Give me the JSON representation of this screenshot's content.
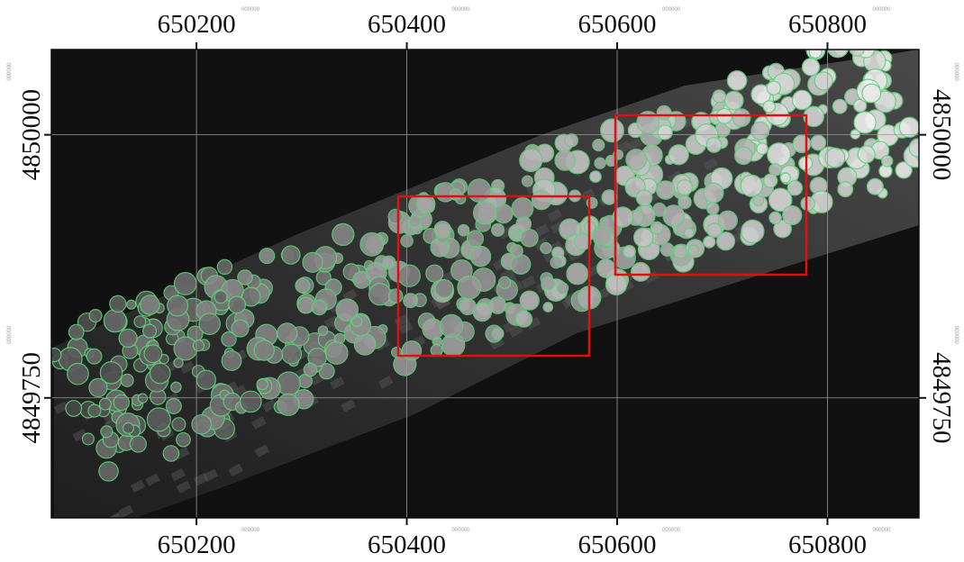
{
  "map": {
    "xlim": [
      650062,
      650887
    ],
    "ylim": [
      4849636,
      4850081
    ],
    "xticks": [
      650200,
      650400,
      650600,
      650800
    ],
    "yticks": [
      4849750,
      4850000
    ],
    "minor_label": "000000"
  }
}
